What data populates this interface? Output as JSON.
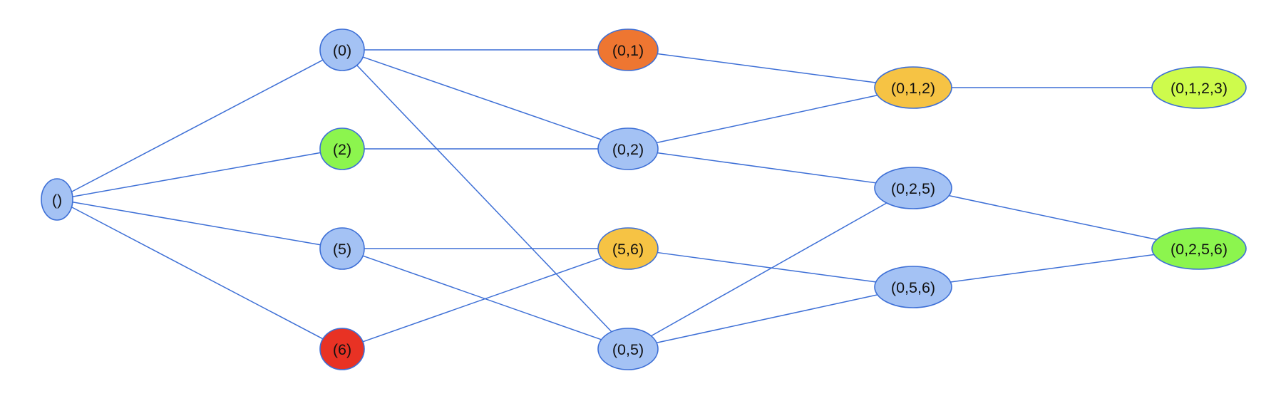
{
  "colors": {
    "edge": "#3d6fd6",
    "default_fill": "#a4c2f4",
    "orange": "#ee7631",
    "amber": "#f6c344",
    "lime": "#cefb4c",
    "green": "#8cf54e",
    "red": "#e83224"
  },
  "diagram": {
    "nodes": [
      {
        "id": "n-empty",
        "label": "()",
        "fill": "#a4c2f4"
      },
      {
        "id": "n-0",
        "label": "(0)",
        "fill": "#a4c2f4"
      },
      {
        "id": "n-2",
        "label": "(2)",
        "fill": "#8cf54e"
      },
      {
        "id": "n-5",
        "label": "(5)",
        "fill": "#a4c2f4"
      },
      {
        "id": "n-6",
        "label": "(6)",
        "fill": "#e83224"
      },
      {
        "id": "n-01",
        "label": "(0,1)",
        "fill": "#ee7631"
      },
      {
        "id": "n-02",
        "label": "(0,2)",
        "fill": "#a4c2f4"
      },
      {
        "id": "n-56",
        "label": "(5,6)",
        "fill": "#f6c344"
      },
      {
        "id": "n-05",
        "label": "(0,5)",
        "fill": "#a4c2f4"
      },
      {
        "id": "n-012",
        "label": "(0,1,2)",
        "fill": "#f6c344"
      },
      {
        "id": "n-025",
        "label": "(0,2,5)",
        "fill": "#a4c2f4"
      },
      {
        "id": "n-056",
        "label": "(0,5,6)",
        "fill": "#a4c2f4"
      },
      {
        "id": "n-0123",
        "label": "(0,1,2,3)",
        "fill": "#cefb4c"
      },
      {
        "id": "n-0256",
        "label": "(0,2,5,6)",
        "fill": "#8cf54e"
      }
    ],
    "edges": [
      [
        "n-empty",
        "n-0"
      ],
      [
        "n-empty",
        "n-2"
      ],
      [
        "n-empty",
        "n-5"
      ],
      [
        "n-empty",
        "n-6"
      ],
      [
        "n-0",
        "n-01"
      ],
      [
        "n-0",
        "n-02"
      ],
      [
        "n-0",
        "n-05"
      ],
      [
        "n-2",
        "n-02"
      ],
      [
        "n-5",
        "n-56"
      ],
      [
        "n-5",
        "n-05"
      ],
      [
        "n-6",
        "n-56"
      ],
      [
        "n-01",
        "n-012"
      ],
      [
        "n-02",
        "n-012"
      ],
      [
        "n-02",
        "n-025"
      ],
      [
        "n-56",
        "n-056"
      ],
      [
        "n-05",
        "n-025"
      ],
      [
        "n-05",
        "n-056"
      ],
      [
        "n-012",
        "n-0123"
      ],
      [
        "n-025",
        "n-0256"
      ],
      [
        "n-056",
        "n-0256"
      ]
    ]
  }
}
